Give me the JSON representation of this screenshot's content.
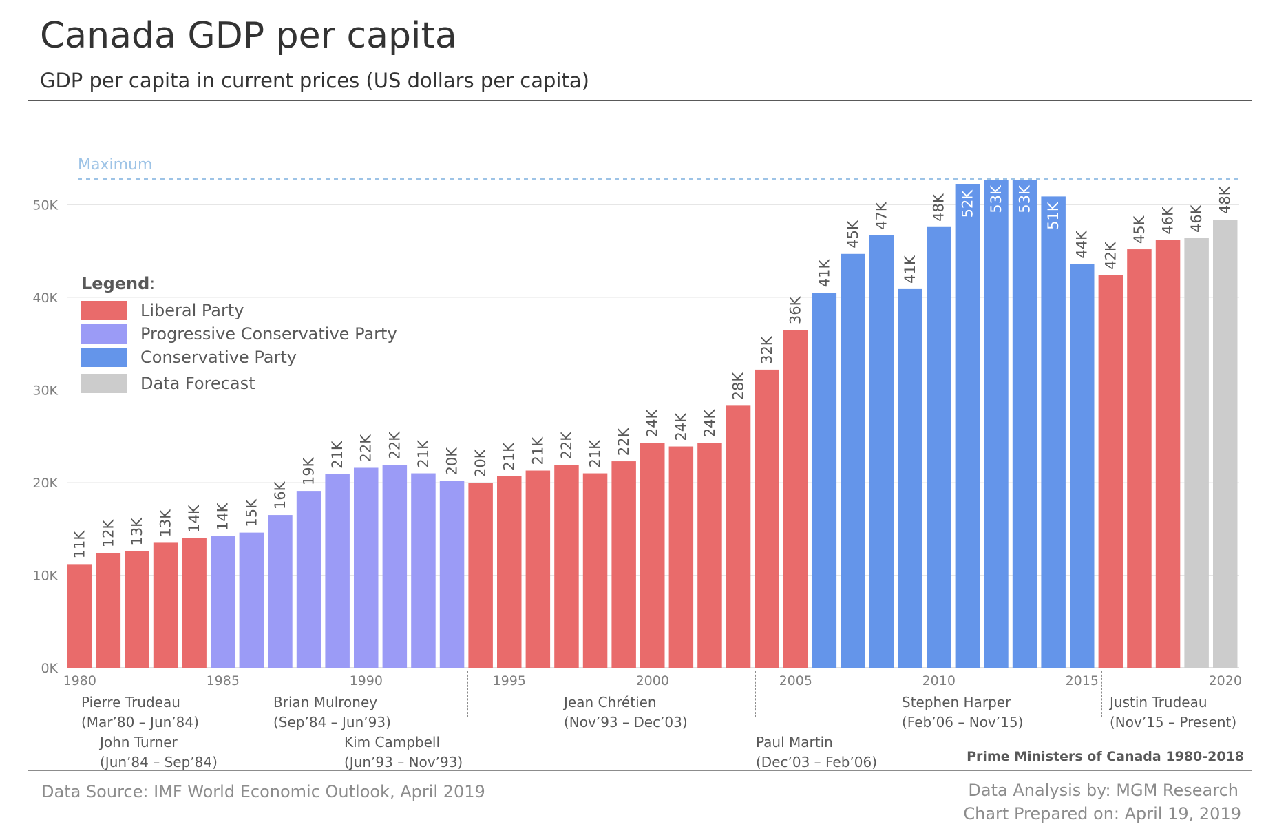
{
  "header": {
    "title": "Canada GDP per capita",
    "subtitle": "GDP per capita in current prices (US dollars per capita)"
  },
  "legend": {
    "heading": "Legend",
    "heading_suffix": ":",
    "items": [
      {
        "label": "Liberal Party",
        "color": "#e96b6b"
      },
      {
        "label": "Progressive Conservative Party",
        "color": "#9b9bf6"
      },
      {
        "label": "Conservative Party",
        "color": "#6495ea"
      },
      {
        "label": "Data Forecast",
        "color": "#cccccc"
      }
    ]
  },
  "chart_data": {
    "type": "bar",
    "title": "Canada GDP per capita",
    "ylim": [
      0,
      53
    ],
    "y_ticks": [
      "0K",
      "10K",
      "20K",
      "30K",
      "40K",
      "50K"
    ],
    "x_tick_labels": [
      "1980",
      "1985",
      "1990",
      "1995",
      "2000",
      "2005",
      "2010",
      "2015",
      "2020"
    ],
    "max_line_label": "Maximum",
    "max_line_value": 52.8,
    "max_line_color": "#9dc3e6",
    "grid": true,
    "categories": [
      1980,
      1981,
      1982,
      1983,
      1984,
      1985,
      1986,
      1987,
      1988,
      1989,
      1990,
      1991,
      1992,
      1993,
      1994,
      1995,
      1996,
      1997,
      1998,
      1999,
      2000,
      2001,
      2002,
      2003,
      2004,
      2005,
      2006,
      2007,
      2008,
      2009,
      2010,
      2011,
      2012,
      2013,
      2014,
      2015,
      2016,
      2017,
      2018,
      2019,
      2020
    ],
    "values": [
      11.2,
      12.4,
      12.6,
      13.5,
      14.0,
      14.2,
      14.6,
      16.5,
      19.1,
      20.9,
      21.6,
      21.9,
      21.0,
      20.2,
      20.0,
      20.7,
      21.3,
      21.9,
      21.0,
      22.3,
      24.3,
      23.9,
      24.3,
      28.3,
      32.2,
      36.5,
      40.5,
      44.7,
      46.7,
      40.9,
      47.6,
      52.2,
      52.7,
      52.7,
      50.9,
      43.6,
      42.4,
      45.2,
      46.2,
      46.4,
      48.4
    ],
    "data_labels": [
      "11K",
      "12K",
      "13K",
      "13K",
      "14K",
      "14K",
      "15K",
      "16K",
      "19K",
      "21K",
      "22K",
      "22K",
      "21K",
      "20K",
      "20K",
      "21K",
      "21K",
      "22K",
      "21K",
      "22K",
      "24K",
      "24K",
      "24K",
      "28K",
      "32K",
      "36K",
      "41K",
      "45K",
      "47K",
      "41K",
      "48K",
      "52K",
      "53K",
      "53K",
      "51K",
      "44K",
      "42K",
      "45K",
      "46K",
      "46K",
      "48K"
    ],
    "parties": [
      "L",
      "L",
      "L",
      "L",
      "L",
      "PC",
      "PC",
      "PC",
      "PC",
      "PC",
      "PC",
      "PC",
      "PC",
      "PC",
      "L",
      "L",
      "L",
      "L",
      "L",
      "L",
      "L",
      "L",
      "L",
      "L",
      "L",
      "L",
      "C",
      "C",
      "C",
      "C",
      "C",
      "C",
      "C",
      "C",
      "C",
      "C",
      "L",
      "L",
      "L",
      "F",
      "F"
    ]
  },
  "prime_ministers": {
    "heading": "Prime Ministers of Canada 1980-2018",
    "items": [
      {
        "name": "Pierre Trudeau",
        "term": "(Mar’80 – Jun’84)"
      },
      {
        "name": "John Turner",
        "term": "(Jun’84 – Sep’84)"
      },
      {
        "name": "Brian Mulroney",
        "term": "(Sep’84 – Jun’93)"
      },
      {
        "name": "Kim Campbell",
        "term": "(Jun’93 – Nov’93)"
      },
      {
        "name": "Jean Chrétien",
        "term": "(Nov’93 – Dec’03)"
      },
      {
        "name": "Paul Martin",
        "term": "(Dec’03 – Feb’06)"
      },
      {
        "name": "Stephen Harper",
        "term": "(Feb’06 – Nov’15)"
      },
      {
        "name": "Justin Trudeau",
        "term": "(Nov’15 – Present)"
      }
    ]
  },
  "footer": {
    "source": "Data Source: IMF World Economic Outlook, April 2019",
    "analysis": "Data Analysis by: MGM Research",
    "prepared": "Chart Prepared on: April 19, 2019"
  }
}
